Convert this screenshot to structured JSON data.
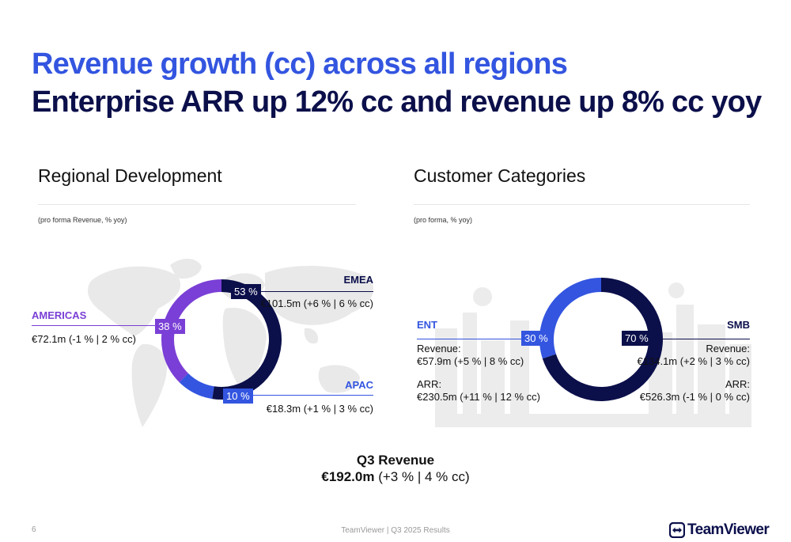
{
  "header": {
    "title_line1": "Revenue growth (cc) across all regions",
    "title_line2": "Enterprise ARR up 12% cc and revenue up 8% cc yoy"
  },
  "regional": {
    "title": "Regional Development",
    "subtitle": "(pro forma Revenue, % yoy)",
    "emea": {
      "name": "EMEA",
      "pct_label": "53 %",
      "value": "€101.5m (+6 % | 6 % cc)"
    },
    "americas": {
      "name": "AMERICAS",
      "pct_label": "38 %",
      "value": "€72.1m (-1 % | 2 % cc)"
    },
    "apac": {
      "name": "APAC",
      "pct_label": "10 %",
      "value": "€18.3m (+1 % | 3 % cc)"
    }
  },
  "customers": {
    "title": "Customer Categories",
    "subtitle": "(pro forma, % yoy)",
    "ent": {
      "name": "ENT",
      "pct_label": "30 %",
      "revenue_label": "Revenue:",
      "revenue_value": "€57.9m (+5 % | 8  % cc)",
      "arr_label": "ARR:",
      "arr_value": "€230.5m (+11 % | 12  % cc)"
    },
    "smb": {
      "name": "SMB",
      "pct_label": "70 %",
      "revenue_label": "Revenue:",
      "revenue_value": "€134.1m (+2 % | 3 % cc)",
      "arr_label": "ARR:",
      "arr_value": "€526.3m (-1 % | 0 % cc)"
    }
  },
  "summary": {
    "label": "Q3 Revenue",
    "value_bold": "€192.0m",
    "value_rest": " (+3 % | 4  % cc)"
  },
  "footer": {
    "page_number": "6",
    "center_text": "TeamViewer | Q3 2025 Results",
    "logo_text": "TeamViewer"
  },
  "colors": {
    "navy": "#0b0f4a",
    "blue": "#3355e0",
    "purple": "#7a3fd6",
    "map_gray": "#e9e9e9"
  },
  "chart_data": [
    {
      "type": "pie",
      "title": "Regional Development",
      "categories": [
        "EMEA",
        "AMERICAS",
        "APAC"
      ],
      "values": [
        53,
        38,
        10
      ],
      "unit": "%"
    },
    {
      "type": "pie",
      "title": "Customer Categories",
      "categories": [
        "ENT",
        "SMB"
      ],
      "values": [
        30,
        70
      ],
      "unit": "%"
    }
  ]
}
